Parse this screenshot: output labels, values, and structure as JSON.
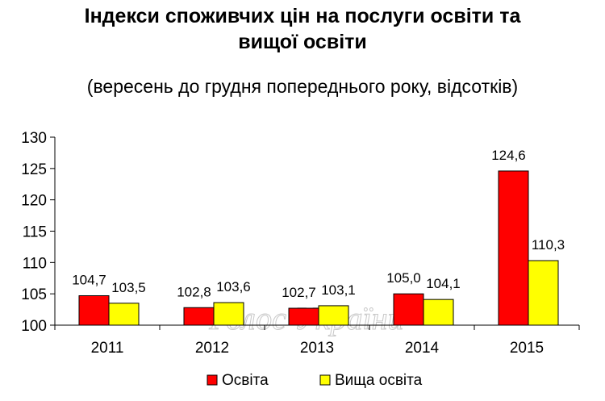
{
  "title_line1": "Індекси споживчих цін на послуги освіти та",
  "title_line2": "вищої освіти",
  "subtitle": "(вересень до грудня попереднього року, відсотків)",
  "watermark": "Голос України",
  "colors": {
    "series1": "#ff0000",
    "series2": "#ffff00",
    "axis": "#000000",
    "watermark": "#c8c8c8"
  },
  "chart_data": {
    "type": "bar",
    "categories": [
      "2011",
      "2012",
      "2013",
      "2014",
      "2015"
    ],
    "series": [
      {
        "name": "Освіта",
        "values": [
          104.7,
          102.8,
          102.7,
          105.0,
          124.6
        ],
        "labels": [
          "104,7",
          "102,8",
          "102,7",
          "105,0",
          "124,6"
        ]
      },
      {
        "name": "Вища освіта",
        "values": [
          103.5,
          103.6,
          103.1,
          104.1,
          110.3
        ],
        "labels": [
          "103,5",
          "103,6",
          "103,1",
          "104,1",
          "110,3"
        ]
      }
    ],
    "ylim": [
      100,
      130
    ],
    "yticks": [
      100,
      105,
      110,
      115,
      120,
      125,
      130
    ],
    "grid": false,
    "legend_position": "bottom"
  }
}
